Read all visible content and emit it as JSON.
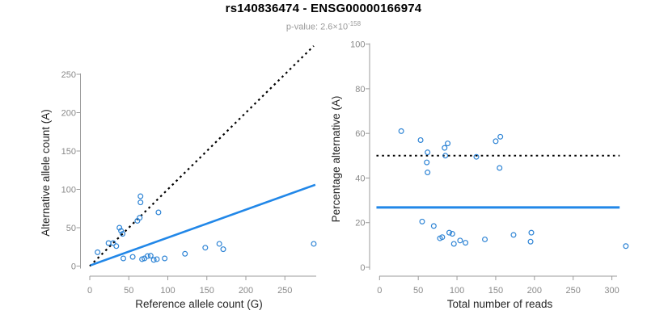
{
  "header": {
    "title": "rs140836474 - ENSG00000166974",
    "subtitle_prefix": "p-value: 2.6×10",
    "subtitle_exponent": "-158"
  },
  "colors": {
    "point": "#2e84d5",
    "line": "#2187e8",
    "identity": "#000000",
    "axis": "#9b9b9b",
    "tick_label": "#8a8a8a",
    "axis_title": "#262626",
    "subtitle": "#9a9a9a"
  },
  "chart_data": [
    {
      "type": "scatter",
      "panel": "left",
      "xlabel": "Reference allele count (G)",
      "ylabel": "Alternative allele count (A)",
      "xticks": [
        0,
        50,
        100,
        150,
        200,
        250
      ],
      "yticks": [
        0,
        50,
        100,
        150,
        200,
        250
      ],
      "xlim": [
        0,
        290
      ],
      "ylim": [
        0,
        290
      ],
      "grid": false,
      "legend": "none",
      "points": [
        [
          10,
          18
        ],
        [
          24,
          30
        ],
        [
          30,
          30
        ],
        [
          34,
          26
        ],
        [
          38,
          50
        ],
        [
          40,
          46
        ],
        [
          42,
          42
        ],
        [
          61,
          59
        ],
        [
          64,
          63
        ],
        [
          65,
          83
        ],
        [
          65,
          91
        ],
        [
          88,
          70
        ],
        [
          43,
          10
        ],
        [
          55,
          12
        ],
        [
          67,
          9
        ],
        [
          70,
          10
        ],
        [
          74,
          13
        ],
        [
          78,
          13.5
        ],
        [
          82,
          8
        ],
        [
          86,
          9
        ],
        [
          96,
          10
        ],
        [
          122,
          16
        ],
        [
          148,
          24
        ],
        [
          166,
          29
        ],
        [
          171,
          22
        ],
        [
          287,
          29
        ]
      ],
      "lines": [
        {
          "name": "identity-line",
          "style": "dotted",
          "color_key": "identity",
          "width": 2.2,
          "from": [
            0,
            0
          ],
          "to": [
            287,
            287
          ]
        },
        {
          "name": "fit-line",
          "style": "solid",
          "color_key": "line",
          "width": 2.6,
          "from": [
            1,
            1
          ],
          "to": [
            289,
            106
          ]
        }
      ]
    },
    {
      "type": "scatter",
      "panel": "right",
      "xlabel": "Total number of reads",
      "ylabel": "Percentage alternative (A)",
      "xticks": [
        0,
        50,
        100,
        150,
        200,
        250,
        300
      ],
      "yticks": [
        0,
        20,
        40,
        60,
        80,
        100
      ],
      "xlim": [
        0,
        320
      ],
      "ylim": [
        0,
        100
      ],
      "grid": false,
      "legend": "none",
      "points": [
        [
          28,
          61
        ],
        [
          53,
          57
        ],
        [
          62,
          51.5
        ],
        [
          61,
          47
        ],
        [
          62,
          42.5
        ],
        [
          84,
          53.5
        ],
        [
          85,
          50
        ],
        [
          88,
          55.5
        ],
        [
          125,
          49.5
        ],
        [
          150,
          56.5
        ],
        [
          156,
          58.5
        ],
        [
          155,
          44.5
        ],
        [
          55,
          20.5
        ],
        [
          70,
          18.5
        ],
        [
          78,
          13
        ],
        [
          81,
          13.5
        ],
        [
          90,
          15.5
        ],
        [
          94,
          15
        ],
        [
          96,
          10.5
        ],
        [
          104,
          12
        ],
        [
          111,
          11
        ],
        [
          136,
          12.5
        ],
        [
          173,
          14.5
        ],
        [
          196,
          15.5
        ],
        [
          195,
          11.5
        ],
        [
          318,
          9.5
        ]
      ],
      "lines": [
        {
          "name": "null-line",
          "style": "dotted",
          "color_key": "identity",
          "width": 2,
          "from": [
            -4,
            50
          ],
          "to": [
            310,
            50
          ]
        },
        {
          "name": "mean-line",
          "style": "solid",
          "color_key": "line",
          "width": 3,
          "from": [
            -4,
            26.8
          ],
          "to": [
            310,
            26.8
          ]
        }
      ]
    }
  ]
}
